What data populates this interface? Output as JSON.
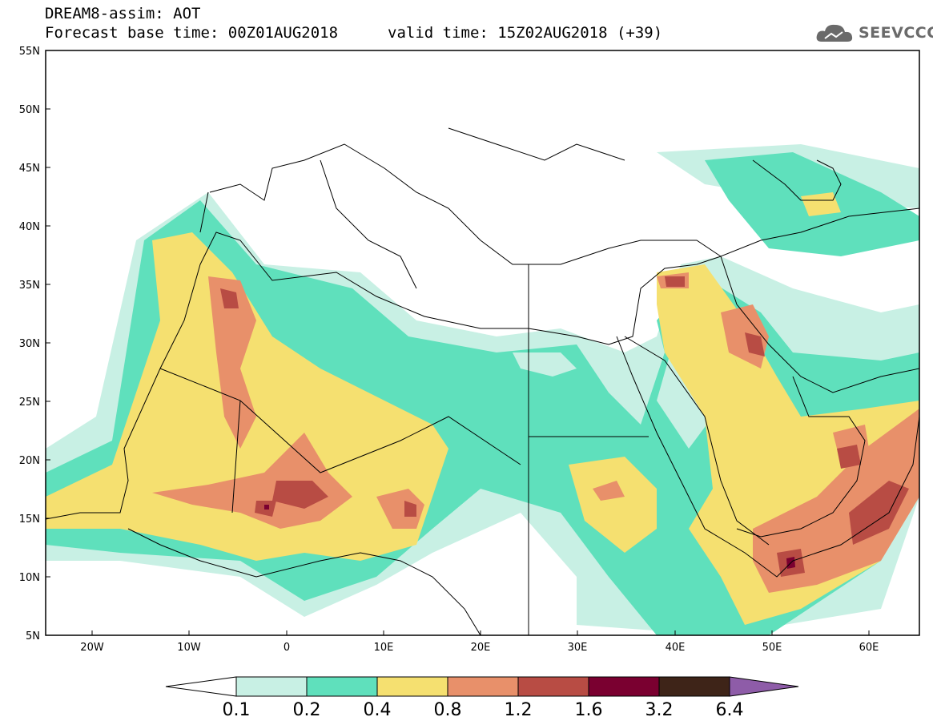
{
  "header": {
    "title": "DREAM8-assim: AOT",
    "base_time": "Forecast base time: 00Z01AUG2018",
    "valid_time": "valid time: 15Z02AUG2018 (+39)",
    "logo_text": "SEEVCCC"
  },
  "map": {
    "lon_range": [
      -25,
      65
    ],
    "lat_range": [
      5,
      55
    ],
    "lat_ticks": [
      "55N",
      "50N",
      "45N",
      "40N",
      "35N",
      "30N",
      "25N",
      "20N",
      "15N",
      "10N",
      "5N"
    ],
    "lon_ticks": [
      "20W",
      "10W",
      "0",
      "10E",
      "20E",
      "30E",
      "40E",
      "50E",
      "60E"
    ],
    "background": "#ffffff"
  },
  "colorbar": {
    "levels": [
      "0.1",
      "0.2",
      "0.4",
      "0.8",
      "1.2",
      "1.6",
      "3.2",
      "6.4"
    ],
    "colors": [
      "#ffffff",
      "#c8f0e4",
      "#5fe0bc",
      "#f5e070",
      "#e8906a",
      "#b84c44",
      "#7a0030",
      "#3e2418",
      "#8e5ca8"
    ]
  }
}
